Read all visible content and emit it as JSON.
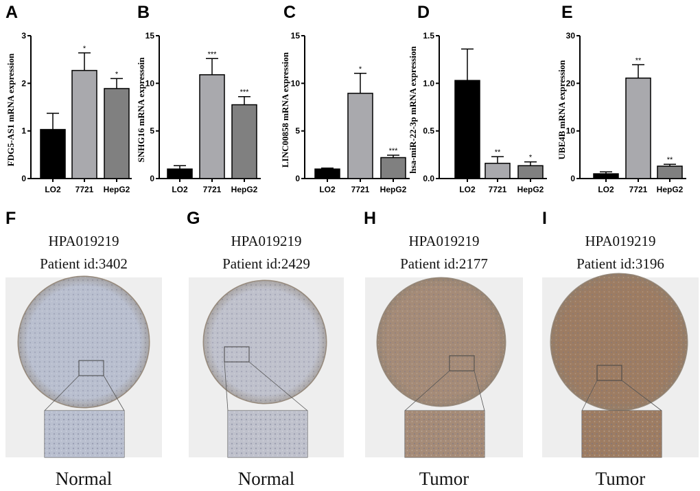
{
  "chart_data": [
    {
      "panel": "A",
      "type": "bar",
      "ylabel": "FDG5-AS1 mRNA expression",
      "categories": [
        "LO2",
        "7721",
        "HepG2"
      ],
      "values": [
        1.03,
        2.27,
        1.89
      ],
      "errors": [
        0.34,
        0.37,
        0.21
      ],
      "significance": [
        "",
        "*",
        "*"
      ],
      "ylim": [
        0,
        3
      ],
      "yticks": [
        "0",
        "1",
        "2",
        "3"
      ],
      "ytick_values": [
        0,
        1,
        2,
        3
      ]
    },
    {
      "panel": "B",
      "type": "bar",
      "ylabel": "SNHG16 mRNA expressoin",
      "categories": [
        "LO2",
        "7721",
        "HepG2"
      ],
      "values": [
        1.0,
        10.9,
        7.75
      ],
      "errors": [
        0.35,
        1.7,
        0.85
      ],
      "significance": [
        "",
        "***",
        "***"
      ],
      "ylim": [
        0,
        15
      ],
      "yticks": [
        "0",
        "5",
        "10",
        "15"
      ],
      "ytick_values": [
        0,
        5,
        10,
        15
      ]
    },
    {
      "panel": "C",
      "type": "bar",
      "ylabel": "LINC00858 mRNA expression",
      "categories": [
        "LO2",
        "7721",
        "HepG2"
      ],
      "values": [
        1.0,
        8.95,
        2.2
      ],
      "errors": [
        0.1,
        2.1,
        0.25
      ],
      "significance": [
        "",
        "*",
        "***"
      ],
      "ylim": [
        0,
        15
      ],
      "yticks": [
        "0",
        "5",
        "10",
        "15"
      ],
      "ytick_values": [
        0,
        5,
        10,
        15
      ]
    },
    {
      "panel": "D",
      "type": "bar",
      "ylabel": "hsa-miR-22-3p mRNA expression",
      "categories": [
        "LO2",
        "7721",
        "HepG2"
      ],
      "values": [
        1.03,
        0.16,
        0.135
      ],
      "errors": [
        0.33,
        0.07,
        0.04
      ],
      "significance": [
        "",
        "**",
        "*"
      ],
      "ylim": [
        0,
        1.5
      ],
      "yticks": [
        "0.0",
        "0.5",
        "1.0",
        "1.5"
      ],
      "ytick_values": [
        0,
        0.5,
        1,
        1.5
      ]
    },
    {
      "panel": "E",
      "type": "bar",
      "ylabel": "UBE4B mRNA expression",
      "categories": [
        "LO2",
        "7721",
        "HepG2"
      ],
      "values": [
        1.0,
        21.1,
        2.6
      ],
      "errors": [
        0.4,
        2.8,
        0.4
      ],
      "significance": [
        "",
        "**",
        "**"
      ],
      "ylim": [
        0,
        30
      ],
      "yticks": [
        "0",
        "10",
        "20",
        "30"
      ],
      "ytick_values": [
        0,
        10,
        20,
        30
      ]
    }
  ],
  "colors": {
    "LO2": "#000000",
    "7721": "#a9a9ad",
    "HepG2": "#808080"
  },
  "tissue_panels": [
    {
      "panel": "F",
      "antibody": "HPA019219",
      "patient": "Patient id:3402",
      "label": "Normal",
      "stain": "#b9bfcf"
    },
    {
      "panel": "G",
      "antibody": "HPA019219",
      "patient": "Patient id:2429",
      "label": "Normal",
      "stain": "#bfc1cc"
    },
    {
      "panel": "H",
      "antibody": "HPA019219",
      "patient": "Patient id:2177",
      "label": "Tumor",
      "stain": "#a58b77"
    },
    {
      "panel": "I",
      "antibody": "HPA019219",
      "patient": "Patient id:3196",
      "label": "Tumor",
      "stain": "#9d7c62"
    }
  ]
}
